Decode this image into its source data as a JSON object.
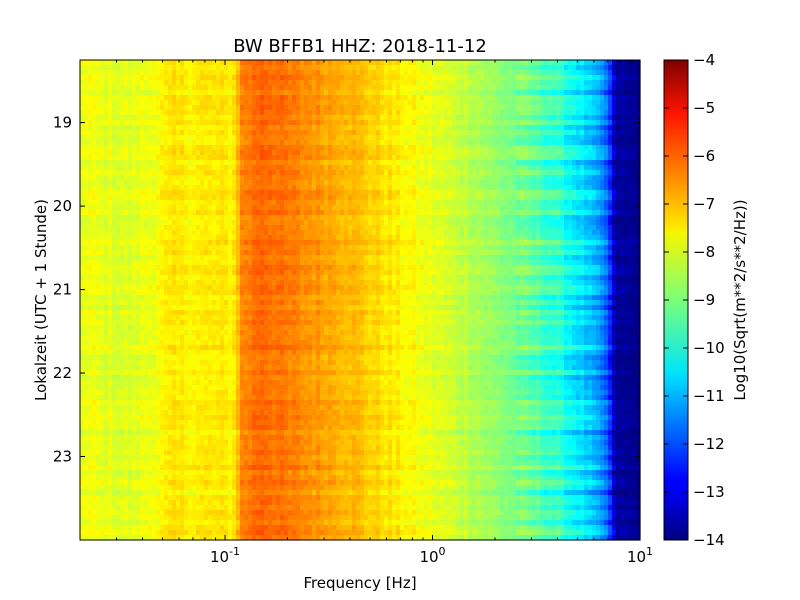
{
  "chart_data": {
    "type": "heatmap",
    "title": "BW BFFB1 HHZ: 2018-11-12",
    "xlabel": "Frequency [Hz]",
    "ylabel": "Lokalzeit (UTC + 1 Stunde)",
    "xscale": "log",
    "xlim": [
      0.02,
      10
    ],
    "ylim": [
      18.25,
      24.0
    ],
    "y_inverted": true,
    "x_ticks": [
      {
        "value": 0.1,
        "base": "10",
        "exp": "-1"
      },
      {
        "value": 1,
        "base": "10",
        "exp": "0"
      },
      {
        "value": 10,
        "base": "10",
        "exp": "1"
      }
    ],
    "y_ticks": [
      {
        "value": 19,
        "label": "19"
      },
      {
        "value": 20,
        "label": "20"
      },
      {
        "value": 21,
        "label": "21"
      },
      {
        "value": 22,
        "label": "22"
      },
      {
        "value": 23,
        "label": "23"
      }
    ],
    "colormap": "jet",
    "colorbar": {
      "label": "Log10(Sqrt(m**2/s**2/Hz))",
      "range": [
        -14,
        -4
      ],
      "ticks": [
        "-4",
        "-5",
        "-6",
        "-7",
        "-8",
        "-9",
        "-10",
        "-11",
        "-12",
        "-13",
        "-14"
      ]
    },
    "spectrum_profile": {
      "frequency_hz": [
        0.02,
        0.035,
        0.057,
        0.08,
        0.11,
        0.12,
        0.15,
        0.2,
        0.3,
        0.4,
        0.5,
        0.6,
        0.8,
        1.0,
        1.5,
        2.0,
        3.0,
        4.0,
        5.0,
        6.0,
        7.0,
        7.6,
        10
      ],
      "log10_amplitude": [
        -7.9,
        -8.1,
        -7.6,
        -7.6,
        -7.6,
        -6.6,
        -6.2,
        -6.5,
        -6.8,
        -7.0,
        -7.3,
        -7.5,
        -7.8,
        -8.0,
        -8.4,
        -8.8,
        -9.3,
        -9.8,
        -10.4,
        -11.0,
        -11.8,
        -13.7,
        -13.9
      ]
    }
  }
}
